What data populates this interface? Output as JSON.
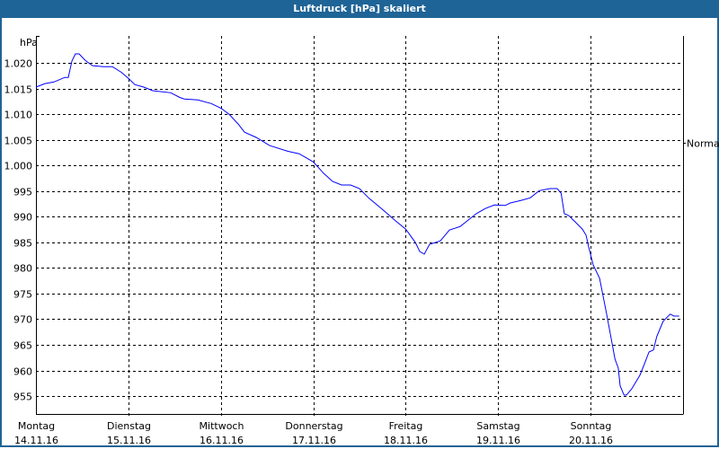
{
  "window": {
    "title": "Luftdruck [hPa] skaliert"
  },
  "chart_data": {
    "type": "line",
    "title": "Luftdruck [hPa] skaliert",
    "ylabel": "hPa",
    "xlim": [
      "2016-11-14T00:00",
      "2016-11-21T00:00"
    ],
    "ylim": [
      951.5,
      1025.3
    ],
    "grid": true,
    "line_color": "#0000ff",
    "yticks": [
      955,
      960,
      965,
      970,
      975,
      980,
      985,
      990,
      995,
      1000,
      1005,
      1010,
      1015,
      1020
    ],
    "ytick_labels": [
      "955",
      "960",
      "965",
      "970",
      "975",
      "980",
      "985",
      "990",
      "995",
      "1.000",
      "1.005",
      "1.010",
      "1.015",
      "1.020"
    ],
    "xticks": [
      {
        "day": "Montag",
        "date": "14.11.16",
        "t": "2016-11-14T00:00"
      },
      {
        "day": "Dienstag",
        "date": "15.11.16",
        "t": "2016-11-15T00:00"
      },
      {
        "day": "Mittwoch",
        "date": "16.11.16",
        "t": "2016-11-16T00:00"
      },
      {
        "day": "Donnerstag",
        "date": "17.11.16",
        "t": "2016-11-17T00:00"
      },
      {
        "day": "Freitag",
        "date": "18.11.16",
        "t": "2016-11-18T00:00"
      },
      {
        "day": "Samstag",
        "date": "19.11.16",
        "t": "2016-11-19T00:00"
      },
      {
        "day": "Sonntag",
        "date": "20.11.16",
        "t": "2016-11-20T00:00"
      }
    ],
    "reference": {
      "label": "Normal",
      "value": 1004.4
    },
    "series": [
      {
        "x": [
          "2016-11-14T00:00",
          "2016-11-14T02:20",
          "2016-11-14T04:40",
          "2016-11-14T07:30",
          "2016-11-14T08:24",
          "2016-11-14T09:20",
          "2016-11-14T10:15",
          "2016-11-14T11:12",
          "2016-11-14T12:50",
          "2016-11-14T14:42",
          "2016-11-14T17:30",
          "2016-11-14T19:50",
          "2016-11-14T22:10",
          "2016-11-15T00:00",
          "2016-11-15T01:40",
          "2016-11-15T04:00",
          "2016-11-15T06:20",
          "2016-11-15T11:00",
          "2016-11-15T13:20",
          "2016-11-15T14:30",
          "2016-11-15T18:00",
          "2016-11-15T21:30",
          "2016-11-16T00:00",
          "2016-11-16T02:10",
          "2016-11-16T04:30",
          "2016-11-16T06:10",
          "2016-11-16T09:10",
          "2016-11-16T12:40",
          "2016-11-16T17:20",
          "2016-11-16T20:20",
          "2016-11-17T00:00",
          "2016-11-17T02:40",
          "2016-11-17T05:00",
          "2016-11-17T07:20",
          "2016-11-17T09:40",
          "2016-11-17T12:00",
          "2016-11-17T14:20",
          "2016-11-17T17:50",
          "2016-11-17T21:20",
          "2016-11-18T00:00",
          "2016-11-18T02:30",
          "2016-11-18T03:40",
          "2016-11-18T04:50",
          "2016-11-18T06:10",
          "2016-11-18T09:00",
          "2016-11-18T11:20",
          "2016-11-18T14:10",
          "2016-11-18T16:00",
          "2016-11-18T18:20",
          "2016-11-18T20:40",
          "2016-11-18T23:00",
          "2016-11-19T01:50",
          "2016-11-19T03:10",
          "2016-11-19T06:00",
          "2016-11-19T08:20",
          "2016-11-19T10:40",
          "2016-11-19T13:30",
          "2016-11-19T15:20",
          "2016-11-19T16:20",
          "2016-11-19T17:10",
          "2016-11-19T18:20",
          "2016-11-19T20:00",
          "2016-11-19T21:50",
          "2016-11-19T22:50",
          "2016-11-19T23:30",
          "2016-11-20T00:40",
          "2016-11-20T02:20",
          "2016-11-20T04:10",
          "2016-11-20T06:20",
          "2016-11-20T07:10",
          "2016-11-20T07:40",
          "2016-11-20T08:40",
          "2016-11-20T09:20",
          "2016-11-20T10:40",
          "2016-11-20T12:50",
          "2016-11-20T14:00",
          "2016-11-20T15:10",
          "2016-11-20T16:20",
          "2016-11-20T17:10",
          "2016-11-20T18:50",
          "2016-11-20T20:40",
          "2016-11-20T21:40",
          "2016-11-20T23:00"
        ],
        "y": [
          1015.3,
          1016.0,
          1016.3,
          1017.2,
          1017.2,
          1020.4,
          1021.8,
          1021.8,
          1020.5,
          1019.5,
          1019.3,
          1019.3,
          1018.2,
          1017.0,
          1015.8,
          1015.3,
          1014.6,
          1014.2,
          1013.3,
          1013.0,
          1012.8,
          1012.1,
          1011.2,
          1010.0,
          1008.1,
          1006.5,
          1005.5,
          1003.9,
          1002.8,
          1002.3,
          1000.7,
          998.5,
          996.9,
          996.2,
          996.2,
          995.5,
          993.7,
          991.5,
          989.2,
          987.6,
          985.0,
          983.2,
          982.7,
          984.6,
          985.3,
          987.4,
          988.1,
          989.2,
          990.6,
          991.6,
          992.3,
          992.2,
          992.7,
          993.2,
          993.7,
          995.1,
          995.5,
          995.5,
          994.6,
          990.6,
          990.2,
          989.0,
          987.6,
          986.4,
          984.1,
          980.6,
          978.0,
          971.0,
          962.2,
          960.5,
          957.0,
          955.2,
          955.2,
          956.4,
          959.1,
          961.3,
          963.6,
          964.0,
          966.6,
          969.6,
          971.0,
          970.6,
          970.6
        ]
      }
    ]
  }
}
